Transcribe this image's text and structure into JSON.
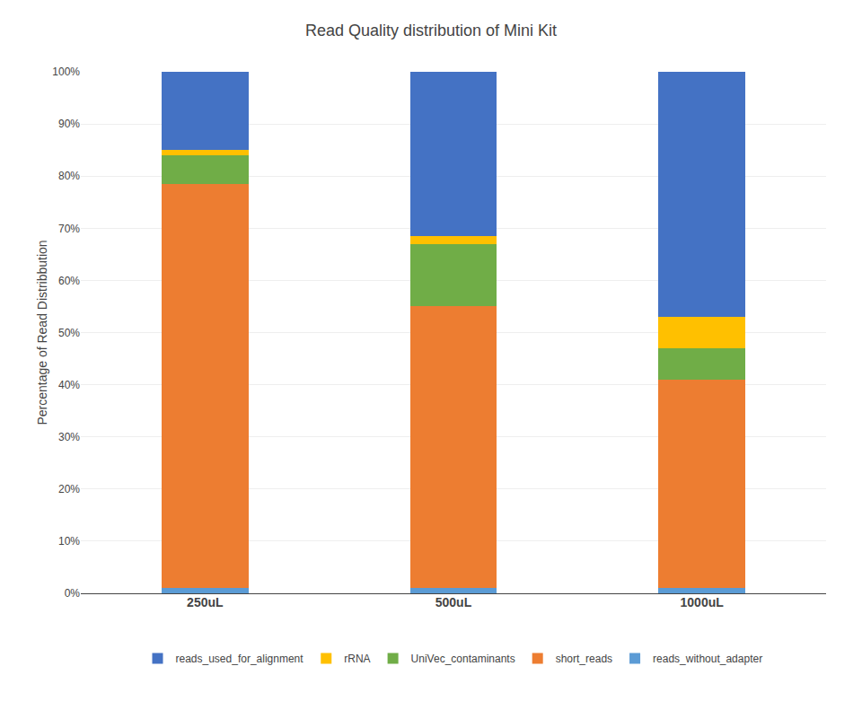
{
  "chart_data": {
    "type": "bar",
    "stacked": true,
    "title": "Read Quality distribution of Mini Kit",
    "ylabel": "Percentage of Read Distribbution",
    "categories": [
      "250uL",
      "500uL",
      "1000uL"
    ],
    "series": [
      {
        "name": "reads_without_adapter",
        "color": "#5B9BD5",
        "values": [
          1.0,
          1.0,
          1.0
        ]
      },
      {
        "name": "short_reads",
        "color": "#ED7D31",
        "values": [
          77.5,
          54.0,
          40.0
        ]
      },
      {
        "name": "UniVec_contaminants",
        "color": "#70AD47",
        "values": [
          5.5,
          12.0,
          6.0
        ]
      },
      {
        "name": "rRNA",
        "color": "#FFC000",
        "values": [
          1.0,
          1.5,
          6.0
        ]
      },
      {
        "name": "reads_used_for_alignment",
        "color": "#4472C4",
        "values": [
          15.0,
          31.5,
          47.0
        ]
      }
    ],
    "ylim": [
      0,
      100
    ],
    "yticks": [
      {
        "value": 0,
        "label": "0%"
      },
      {
        "value": 10,
        "label": "10%"
      },
      {
        "value": 20,
        "label": "20%"
      },
      {
        "value": 30,
        "label": "30%"
      },
      {
        "value": 40,
        "label": "40%"
      },
      {
        "value": 50,
        "label": "50%"
      },
      {
        "value": 60,
        "label": "60%"
      },
      {
        "value": 70,
        "label": "70%"
      },
      {
        "value": 80,
        "label": "80%"
      },
      {
        "value": 90,
        "label": "90%"
      },
      {
        "value": 100,
        "label": "100%"
      }
    ],
    "grid": true,
    "legend": "bottom"
  }
}
